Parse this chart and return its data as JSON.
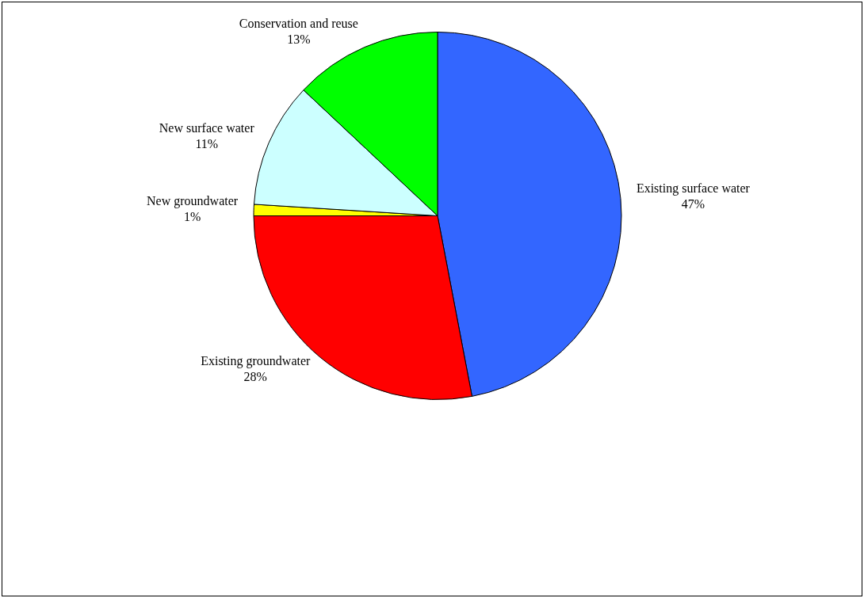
{
  "chart_data": {
    "type": "pie",
    "categories": [
      "Existing surface water",
      "Existing groundwater",
      "New groundwater",
      "New surface water",
      "Conservation and reuse"
    ],
    "values": [
      47,
      28,
      1,
      11,
      13
    ],
    "value_labels": [
      "47%",
      "28%",
      "1%",
      "11%",
      "13%"
    ],
    "colors": [
      "#3366ff",
      "#ff0000",
      "#ffff00",
      "#ccffff",
      "#00ff00"
    ],
    "legend": false
  }
}
